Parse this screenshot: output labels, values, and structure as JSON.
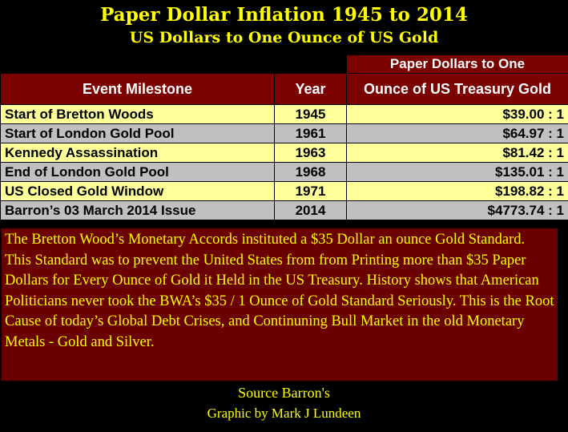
{
  "title": "Paper Dollar Inflation 1945 to 2014",
  "subtitle": "US Dollars to One Ounce of US Gold",
  "chart_data": {
    "type": "table",
    "header_group": "Paper Dollars to One",
    "columns": [
      "Event Milestone",
      "Year",
      "Ounce of US Treasury Gold"
    ],
    "rows": [
      [
        "Start of Bretton Woods",
        "1945",
        "$39.00 : 1"
      ],
      [
        "Start of London Gold Pool",
        "1961",
        "$64.97 : 1"
      ],
      [
        "Kennedy Assassination",
        "1963",
        "$81.42 : 1"
      ],
      [
        "End of London Gold Pool",
        "1968",
        "$135.01 : 1"
      ],
      [
        "US Closed Gold Window",
        "1971",
        "$198.82 : 1"
      ],
      [
        "Barron’s 03 March 2014 Issue",
        "2014",
        "$4773.74 : 1"
      ]
    ]
  },
  "note": "The Bretton Wood’s Monetary Accords instituted a $35 Dollar an ounce Gold Standard.  This Standard was to prevent the United States from from Printing more than $35 Paper Dollars for Every Ounce of Gold it Held in the US Treasury. History shows that American Politicians never took the BWA’s $35 / 1 Ounce of Gold Standard Seriously.  This is the Root Cause of today’s Global Debt Crises, and Continuning Bull Market in the old Monetary Metals - Gold and Silver.",
  "source": "Source Barron's",
  "credit": "Graphic by Mark J Lundeen",
  "colors": {
    "title": "#ffff00",
    "header_bg": "#7b0000",
    "row_odd": "#ffff99",
    "row_even": "#c0c0c0",
    "note_bg": "#6b0000"
  }
}
